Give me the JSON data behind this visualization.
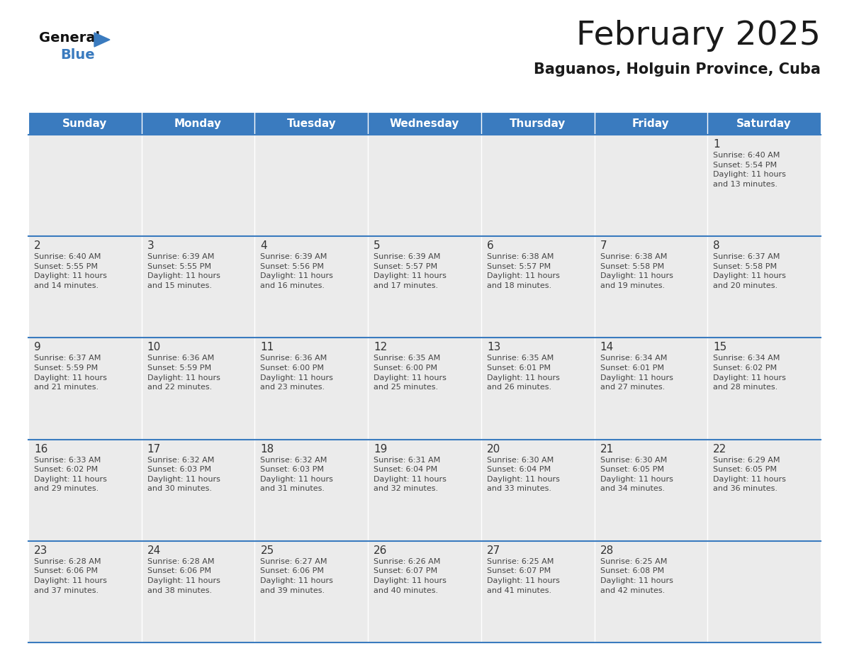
{
  "title": "February 2025",
  "subtitle": "Baguanos, Holguin Province, Cuba",
  "header_bg_color": "#3a7bbf",
  "header_text_color": "#ffffff",
  "cell_bg_color": "#ebebeb",
  "border_color": "#3a7bbf",
  "day_number_color": "#333333",
  "cell_text_color": "#444444",
  "title_color": "#1a1a1a",
  "days_of_week": [
    "Sunday",
    "Monday",
    "Tuesday",
    "Wednesday",
    "Thursday",
    "Friday",
    "Saturday"
  ],
  "weeks": [
    [
      {
        "day": null,
        "info": null
      },
      {
        "day": null,
        "info": null
      },
      {
        "day": null,
        "info": null
      },
      {
        "day": null,
        "info": null
      },
      {
        "day": null,
        "info": null
      },
      {
        "day": null,
        "info": null
      },
      {
        "day": 1,
        "info": "Sunrise: 6:40 AM\nSunset: 5:54 PM\nDaylight: 11 hours\nand 13 minutes."
      }
    ],
    [
      {
        "day": 2,
        "info": "Sunrise: 6:40 AM\nSunset: 5:55 PM\nDaylight: 11 hours\nand 14 minutes."
      },
      {
        "day": 3,
        "info": "Sunrise: 6:39 AM\nSunset: 5:55 PM\nDaylight: 11 hours\nand 15 minutes."
      },
      {
        "day": 4,
        "info": "Sunrise: 6:39 AM\nSunset: 5:56 PM\nDaylight: 11 hours\nand 16 minutes."
      },
      {
        "day": 5,
        "info": "Sunrise: 6:39 AM\nSunset: 5:57 PM\nDaylight: 11 hours\nand 17 minutes."
      },
      {
        "day": 6,
        "info": "Sunrise: 6:38 AM\nSunset: 5:57 PM\nDaylight: 11 hours\nand 18 minutes."
      },
      {
        "day": 7,
        "info": "Sunrise: 6:38 AM\nSunset: 5:58 PM\nDaylight: 11 hours\nand 19 minutes."
      },
      {
        "day": 8,
        "info": "Sunrise: 6:37 AM\nSunset: 5:58 PM\nDaylight: 11 hours\nand 20 minutes."
      }
    ],
    [
      {
        "day": 9,
        "info": "Sunrise: 6:37 AM\nSunset: 5:59 PM\nDaylight: 11 hours\nand 21 minutes."
      },
      {
        "day": 10,
        "info": "Sunrise: 6:36 AM\nSunset: 5:59 PM\nDaylight: 11 hours\nand 22 minutes."
      },
      {
        "day": 11,
        "info": "Sunrise: 6:36 AM\nSunset: 6:00 PM\nDaylight: 11 hours\nand 23 minutes."
      },
      {
        "day": 12,
        "info": "Sunrise: 6:35 AM\nSunset: 6:00 PM\nDaylight: 11 hours\nand 25 minutes."
      },
      {
        "day": 13,
        "info": "Sunrise: 6:35 AM\nSunset: 6:01 PM\nDaylight: 11 hours\nand 26 minutes."
      },
      {
        "day": 14,
        "info": "Sunrise: 6:34 AM\nSunset: 6:01 PM\nDaylight: 11 hours\nand 27 minutes."
      },
      {
        "day": 15,
        "info": "Sunrise: 6:34 AM\nSunset: 6:02 PM\nDaylight: 11 hours\nand 28 minutes."
      }
    ],
    [
      {
        "day": 16,
        "info": "Sunrise: 6:33 AM\nSunset: 6:02 PM\nDaylight: 11 hours\nand 29 minutes."
      },
      {
        "day": 17,
        "info": "Sunrise: 6:32 AM\nSunset: 6:03 PM\nDaylight: 11 hours\nand 30 minutes."
      },
      {
        "day": 18,
        "info": "Sunrise: 6:32 AM\nSunset: 6:03 PM\nDaylight: 11 hours\nand 31 minutes."
      },
      {
        "day": 19,
        "info": "Sunrise: 6:31 AM\nSunset: 6:04 PM\nDaylight: 11 hours\nand 32 minutes."
      },
      {
        "day": 20,
        "info": "Sunrise: 6:30 AM\nSunset: 6:04 PM\nDaylight: 11 hours\nand 33 minutes."
      },
      {
        "day": 21,
        "info": "Sunrise: 6:30 AM\nSunset: 6:05 PM\nDaylight: 11 hours\nand 34 minutes."
      },
      {
        "day": 22,
        "info": "Sunrise: 6:29 AM\nSunset: 6:05 PM\nDaylight: 11 hours\nand 36 minutes."
      }
    ],
    [
      {
        "day": 23,
        "info": "Sunrise: 6:28 AM\nSunset: 6:06 PM\nDaylight: 11 hours\nand 37 minutes."
      },
      {
        "day": 24,
        "info": "Sunrise: 6:28 AM\nSunset: 6:06 PM\nDaylight: 11 hours\nand 38 minutes."
      },
      {
        "day": 25,
        "info": "Sunrise: 6:27 AM\nSunset: 6:06 PM\nDaylight: 11 hours\nand 39 minutes."
      },
      {
        "day": 26,
        "info": "Sunrise: 6:26 AM\nSunset: 6:07 PM\nDaylight: 11 hours\nand 40 minutes."
      },
      {
        "day": 27,
        "info": "Sunrise: 6:25 AM\nSunset: 6:07 PM\nDaylight: 11 hours\nand 41 minutes."
      },
      {
        "day": 28,
        "info": "Sunrise: 6:25 AM\nSunset: 6:08 PM\nDaylight: 11 hours\nand 42 minutes."
      },
      {
        "day": null,
        "info": null
      }
    ]
  ],
  "figsize": [
    11.88,
    9.18
  ],
  "dpi": 100,
  "logo_general_fontsize": 14,
  "logo_blue_fontsize": 14,
  "title_fontsize": 34,
  "subtitle_fontsize": 15,
  "header_fontsize": 11,
  "day_num_fontsize": 11,
  "cell_text_fontsize": 8
}
